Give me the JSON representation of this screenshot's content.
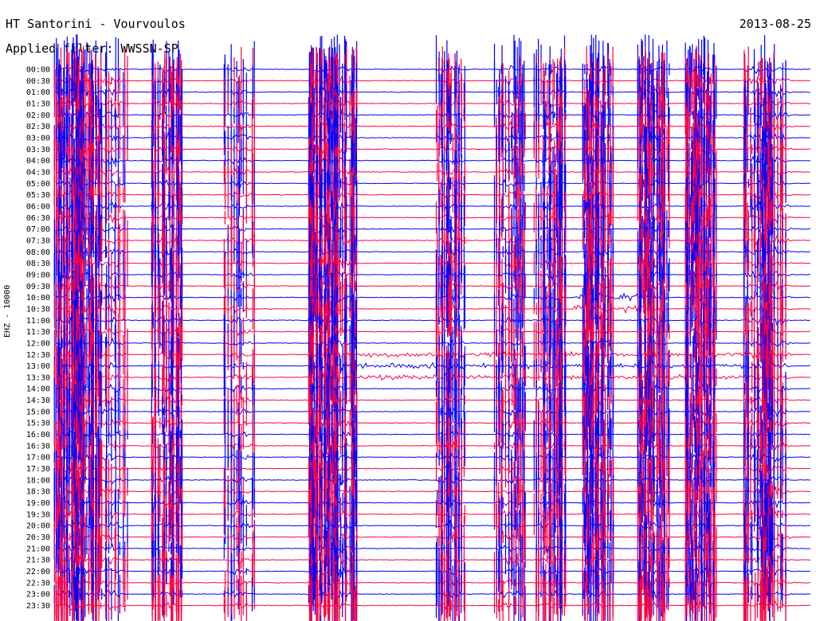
{
  "header": {
    "station": "HT Santorini - Vourvoulos",
    "filter": "Applied filter: WWSSN-SP",
    "date": "2013-08-25"
  },
  "chart_data": {
    "type": "line",
    "title": "HT Santorini - Vourvoulos",
    "subtitle": "Applied filter: WWSSN-SP",
    "date": "2013-08-25",
    "ylabel": "EHZ - 10000",
    "xlabel": "",
    "y_tick_labels": [
      "00:00",
      "00:30",
      "01:00",
      "01:30",
      "02:00",
      "02:30",
      "03:00",
      "03:30",
      "04:00",
      "04:30",
      "05:00",
      "05:30",
      "06:00",
      "06:30",
      "07:00",
      "07:30",
      "08:00",
      "08:30",
      "09:00",
      "09:30",
      "10:00",
      "10:30",
      "11:00",
      "11:30",
      "12:00",
      "12:30",
      "13:00",
      "13:30",
      "14:00",
      "14:30",
      "15:00",
      "15:30",
      "16:00",
      "16:30",
      "17:00",
      "17:30",
      "18:00",
      "18:30",
      "19:00",
      "19:30",
      "20:00",
      "20:30",
      "21:00",
      "21:30",
      "22:00",
      "22:30",
      "23:00",
      "23:30"
    ],
    "series_colors": [
      "#0000ff",
      "#ff0040"
    ],
    "grid": false,
    "legend": "none"
  }
}
